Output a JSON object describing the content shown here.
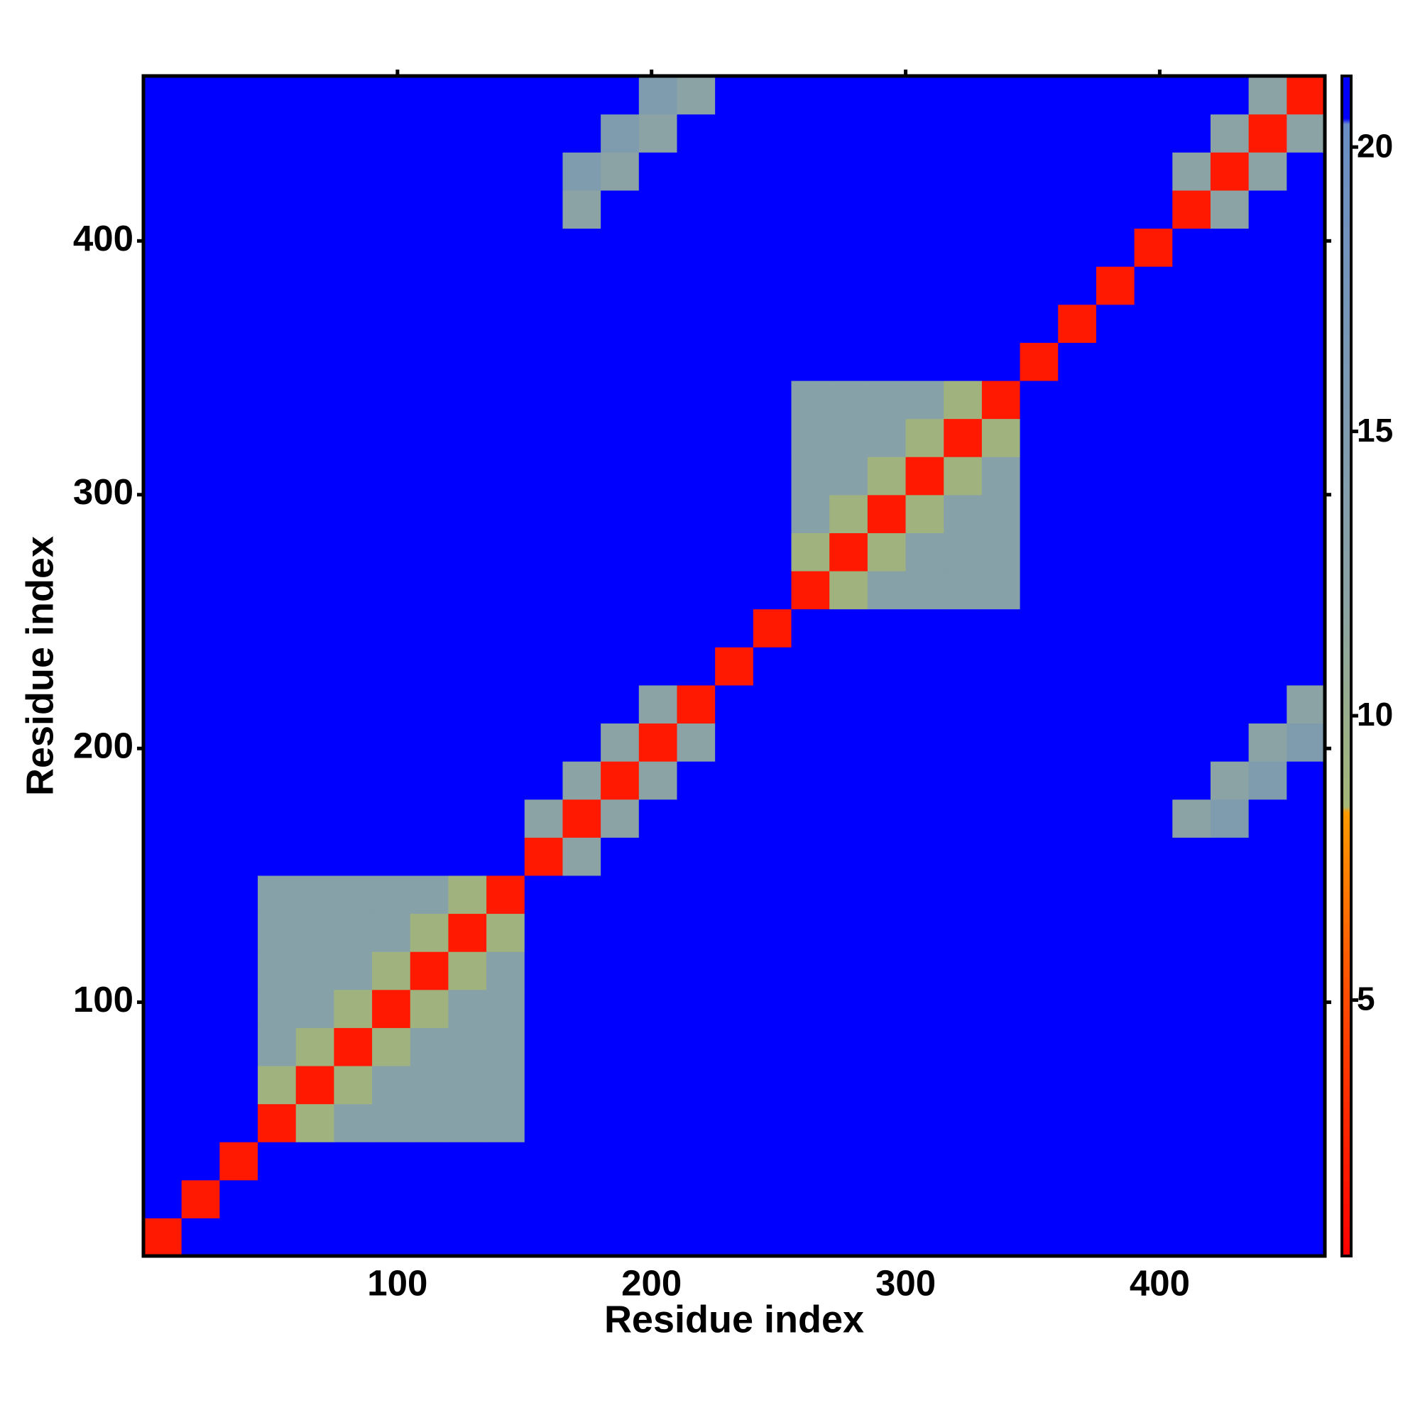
{
  "chart_data": {
    "type": "heatmap",
    "xlabel": "Residue index",
    "ylabel": "Residue index",
    "xlim": [
      0,
      465
    ],
    "ylim": [
      0,
      465
    ],
    "xticks": [
      100,
      200,
      300,
      400
    ],
    "yticks": [
      100,
      200,
      300,
      400
    ],
    "bins": [
      0,
      15,
      30,
      45,
      60,
      75,
      90,
      105,
      120,
      135,
      150,
      165,
      180,
      195,
      210,
      225,
      240,
      255,
      270,
      285,
      300,
      315,
      330,
      345,
      360,
      375,
      390,
      405,
      420,
      435,
      450,
      465
    ],
    "colorlim": [
      0.5,
      21.25
    ],
    "colorticks": [
      5,
      10,
      15,
      20
    ],
    "colorscale": [
      {
        "value": 0.5,
        "color": "#ff0000"
      },
      {
        "value": 5,
        "color": "#ff4a00"
      },
      {
        "value": 8.3,
        "color": "#ff9a00"
      },
      {
        "value": 8.4,
        "color": "#a4b678"
      },
      {
        "value": 12,
        "color": "#8ba3a4"
      },
      {
        "value": 20.4,
        "color": "#6a8ec4"
      },
      {
        "value": 20.5,
        "color": "#0000ff"
      },
      {
        "value": 21.25,
        "color": "#0000ff"
      }
    ],
    "matrix": [
      [
        2,
        21,
        21,
        21,
        21,
        21,
        21,
        21,
        21,
        21,
        21,
        21,
        21,
        21,
        21,
        21,
        21,
        21,
        21,
        21,
        21,
        21,
        21,
        21,
        21,
        21,
        21,
        21,
        21,
        21,
        21
      ],
      [
        21,
        2,
        21,
        21,
        21,
        21,
        21,
        21,
        21,
        21,
        21,
        21,
        21,
        21,
        21,
        21,
        21,
        21,
        21,
        21,
        21,
        21,
        21,
        21,
        21,
        21,
        21,
        21,
        21,
        21,
        21
      ],
      [
        21,
        21,
        2,
        21,
        21,
        21,
        21,
        21,
        21,
        21,
        21,
        21,
        21,
        21,
        21,
        21,
        21,
        21,
        21,
        21,
        21,
        21,
        21,
        21,
        21,
        21,
        21,
        21,
        21,
        21,
        21
      ],
      [
        21,
        21,
        21,
        2,
        9,
        13,
        13,
        13,
        13,
        13,
        21,
        21,
        21,
        21,
        21,
        21,
        21,
        21,
        21,
        21,
        21,
        21,
        21,
        21,
        21,
        21,
        21,
        21,
        21,
        21,
        21
      ],
      [
        21,
        21,
        21,
        9,
        2,
        9,
        13,
        13,
        13,
        13,
        21,
        21,
        21,
        21,
        21,
        21,
        21,
        21,
        21,
        21,
        21,
        21,
        21,
        21,
        21,
        21,
        21,
        21,
        21,
        21,
        21
      ],
      [
        21,
        21,
        21,
        13,
        9,
        2,
        9,
        13,
        13,
        13,
        21,
        21,
        21,
        21,
        21,
        21,
        21,
        21,
        21,
        21,
        21,
        21,
        21,
        21,
        21,
        21,
        21,
        21,
        21,
        21,
        21
      ],
      [
        21,
        21,
        21,
        13,
        13,
        9,
        2,
        9,
        13,
        13,
        21,
        21,
        21,
        21,
        21,
        21,
        21,
        21,
        21,
        21,
        21,
        21,
        21,
        21,
        21,
        21,
        21,
        21,
        21,
        21,
        21
      ],
      [
        21,
        21,
        21,
        13,
        13,
        13,
        9,
        2,
        9,
        13,
        21,
        21,
        21,
        21,
        21,
        21,
        21,
        21,
        21,
        21,
        21,
        21,
        21,
        21,
        21,
        21,
        21,
        21,
        21,
        21,
        21
      ],
      [
        21,
        21,
        21,
        13,
        13,
        13,
        13,
        9,
        2,
        9,
        21,
        21,
        21,
        21,
        21,
        21,
        21,
        21,
        21,
        21,
        21,
        21,
        21,
        21,
        21,
        21,
        21,
        21,
        21,
        21,
        21
      ],
      [
        21,
        21,
        21,
        13,
        13,
        13,
        13,
        13,
        9,
        2,
        21,
        21,
        21,
        21,
        21,
        21,
        21,
        21,
        21,
        21,
        21,
        21,
        21,
        21,
        21,
        21,
        21,
        21,
        21,
        21,
        21
      ],
      [
        21,
        21,
        21,
        21,
        21,
        21,
        21,
        21,
        21,
        21,
        2,
        12,
        21,
        21,
        21,
        21,
        21,
        21,
        21,
        21,
        21,
        21,
        21,
        21,
        21,
        21,
        21,
        21,
        21,
        21,
        21
      ],
      [
        21,
        21,
        21,
        21,
        21,
        21,
        21,
        21,
        21,
        21,
        12,
        2,
        12,
        21,
        21,
        21,
        21,
        21,
        21,
        21,
        21,
        21,
        21,
        21,
        21,
        21,
        21,
        12,
        15,
        21,
        21
      ],
      [
        21,
        21,
        21,
        21,
        21,
        21,
        21,
        21,
        21,
        21,
        21,
        12,
        2,
        12,
        21,
        21,
        21,
        21,
        21,
        21,
        21,
        21,
        21,
        21,
        21,
        21,
        21,
        21,
        12,
        15,
        21
      ],
      [
        21,
        21,
        21,
        21,
        21,
        21,
        21,
        21,
        21,
        21,
        21,
        21,
        12,
        2,
        12,
        21,
        21,
        21,
        21,
        21,
        21,
        21,
        21,
        21,
        21,
        21,
        21,
        21,
        21,
        12,
        15
      ],
      [
        21,
        21,
        21,
        21,
        21,
        21,
        21,
        21,
        21,
        21,
        21,
        21,
        21,
        12,
        2,
        21,
        21,
        21,
        21,
        21,
        21,
        21,
        21,
        21,
        21,
        21,
        21,
        21,
        21,
        21,
        12
      ],
      [
        21,
        21,
        21,
        21,
        21,
        21,
        21,
        21,
        21,
        21,
        21,
        21,
        21,
        21,
        21,
        2,
        21,
        21,
        21,
        21,
        21,
        21,
        21,
        21,
        21,
        21,
        21,
        21,
        21,
        21,
        21
      ],
      [
        21,
        21,
        21,
        21,
        21,
        21,
        21,
        21,
        21,
        21,
        21,
        21,
        21,
        21,
        21,
        21,
        2,
        21,
        21,
        21,
        21,
        21,
        21,
        21,
        21,
        21,
        21,
        21,
        21,
        21,
        21
      ],
      [
        21,
        21,
        21,
        21,
        21,
        21,
        21,
        21,
        21,
        21,
        21,
        21,
        21,
        21,
        21,
        21,
        21,
        2,
        9,
        13,
        13,
        13,
        13,
        21,
        21,
        21,
        21,
        21,
        21,
        21,
        21
      ],
      [
        21,
        21,
        21,
        21,
        21,
        21,
        21,
        21,
        21,
        21,
        21,
        21,
        21,
        21,
        21,
        21,
        21,
        9,
        2,
        9,
        13,
        13,
        13,
        21,
        21,
        21,
        21,
        21,
        21,
        21,
        21
      ],
      [
        21,
        21,
        21,
        21,
        21,
        21,
        21,
        21,
        21,
        21,
        21,
        21,
        21,
        21,
        21,
        21,
        21,
        13,
        9,
        2,
        9,
        13,
        13,
        21,
        21,
        21,
        21,
        21,
        21,
        21,
        21
      ],
      [
        21,
        21,
        21,
        21,
        21,
        21,
        21,
        21,
        21,
        21,
        21,
        21,
        21,
        21,
        21,
        21,
        21,
        13,
        13,
        9,
        2,
        9,
        13,
        21,
        21,
        21,
        21,
        21,
        21,
        21,
        21
      ],
      [
        21,
        21,
        21,
        21,
        21,
        21,
        21,
        21,
        21,
        21,
        21,
        21,
        21,
        21,
        21,
        21,
        21,
        13,
        13,
        13,
        9,
        2,
        9,
        21,
        21,
        21,
        21,
        21,
        21,
        21,
        21
      ],
      [
        21,
        21,
        21,
        21,
        21,
        21,
        21,
        21,
        21,
        21,
        21,
        21,
        21,
        21,
        21,
        21,
        21,
        13,
        13,
        13,
        13,
        9,
        2,
        21,
        21,
        21,
        21,
        21,
        21,
        21,
        21
      ],
      [
        21,
        21,
        21,
        21,
        21,
        21,
        21,
        21,
        21,
        21,
        21,
        21,
        21,
        21,
        21,
        21,
        21,
        21,
        21,
        21,
        21,
        21,
        21,
        2,
        21,
        21,
        21,
        21,
        21,
        21,
        21
      ],
      [
        21,
        21,
        21,
        21,
        21,
        21,
        21,
        21,
        21,
        21,
        21,
        21,
        21,
        21,
        21,
        21,
        21,
        21,
        21,
        21,
        21,
        21,
        21,
        21,
        2,
        21,
        21,
        21,
        21,
        21,
        21
      ],
      [
        21,
        21,
        21,
        21,
        21,
        21,
        21,
        21,
        21,
        21,
        21,
        21,
        21,
        21,
        21,
        21,
        21,
        21,
        21,
        21,
        21,
        21,
        21,
        21,
        21,
        2,
        21,
        21,
        21,
        21,
        21
      ],
      [
        21,
        21,
        21,
        21,
        21,
        21,
        21,
        21,
        21,
        21,
        21,
        21,
        21,
        21,
        21,
        21,
        21,
        21,
        21,
        21,
        21,
        21,
        21,
        21,
        21,
        21,
        2,
        21,
        21,
        21,
        21
      ],
      [
        21,
        21,
        21,
        21,
        21,
        21,
        21,
        21,
        21,
        21,
        21,
        12,
        21,
        21,
        21,
        21,
        21,
        21,
        21,
        21,
        21,
        21,
        21,
        21,
        21,
        21,
        21,
        2,
        12,
        21,
        21
      ],
      [
        21,
        21,
        21,
        21,
        21,
        21,
        21,
        21,
        21,
        21,
        21,
        15,
        12,
        21,
        21,
        21,
        21,
        21,
        21,
        21,
        21,
        21,
        21,
        21,
        21,
        21,
        21,
        12,
        2,
        12,
        21
      ],
      [
        21,
        21,
        21,
        21,
        21,
        21,
        21,
        21,
        21,
        21,
        21,
        21,
        15,
        12,
        21,
        21,
        21,
        21,
        21,
        21,
        21,
        21,
        21,
        21,
        21,
        21,
        21,
        21,
        12,
        2,
        12
      ],
      [
        21,
        21,
        21,
        21,
        21,
        21,
        21,
        21,
        21,
        21,
        21,
        21,
        21,
        15,
        12,
        21,
        21,
        21,
        21,
        21,
        21,
        21,
        21,
        21,
        21,
        21,
        21,
        21,
        21,
        12,
        2
      ]
    ]
  }
}
